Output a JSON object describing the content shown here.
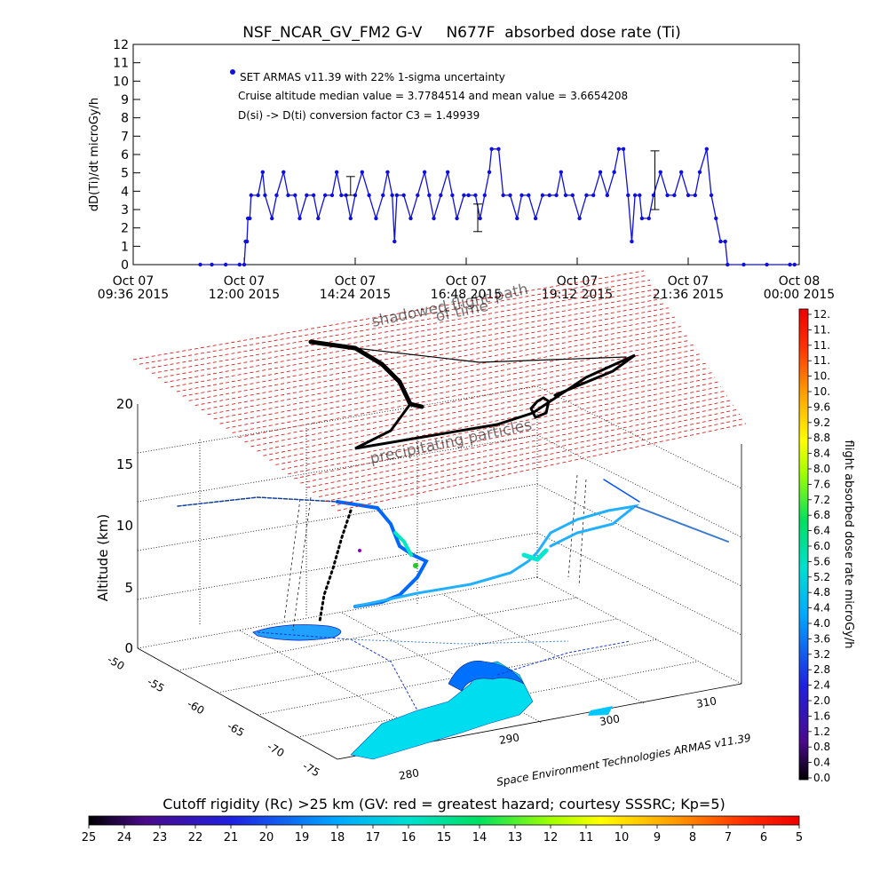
{
  "chart_data": [
    {
      "type": "line",
      "title": "NSF_NCAR_GV_FM2 G-V     N677F  absorbed dose rate (Ti)",
      "ylabel": "dD(Ti)/dt microGy/h",
      "ylim": [
        0,
        12
      ],
      "yticks": [
        "0",
        "1",
        "2",
        "3",
        "4",
        "5",
        "6",
        "7",
        "8",
        "9",
        "10",
        "11",
        "12"
      ],
      "x_ticks_line1": [
        "Oct 07",
        "Oct 07",
        "Oct 07",
        "Oct 07",
        "Oct 07",
        "Oct 07",
        "Oct 08"
      ],
      "x_ticks_line2": [
        "09:36 2015",
        "12:00 2015",
        "14:24 2015",
        "16:48 2015",
        "19:12 2015",
        "21:36 2015",
        "00:00 2015"
      ],
      "x_hours": [
        9.6,
        12.0,
        14.4,
        16.8,
        19.2,
        21.6,
        24.0
      ],
      "annotations": {
        "legend": "SET ARMAS v11.39 with 22% 1-sigma uncertainty",
        "stats": "Cruise altitude median value = 3.7784514 and mean value = 3.6654208",
        "conversion": "D(si) -> D(ti) conversion factor C3 = 1.49939"
      },
      "series": [
        {
          "color": "#1010dd",
          "points_hours_value": [
            [
              11.05,
              0
            ],
            [
              11.3,
              0
            ],
            [
              11.6,
              0
            ],
            [
              11.9,
              0
            ],
            [
              12.0,
              0
            ],
            [
              12.03,
              1.26
            ],
            [
              12.06,
              1.26
            ],
            [
              12.08,
              2.52
            ],
            [
              12.12,
              2.52
            ],
            [
              12.15,
              3.78
            ],
            [
              12.3,
              3.78
            ],
            [
              12.4,
              5.04
            ],
            [
              12.45,
              3.78
            ],
            [
              12.6,
              2.52
            ],
            [
              12.7,
              3.78
            ],
            [
              12.85,
              5.04
            ],
            [
              12.95,
              3.78
            ],
            [
              13.1,
              3.78
            ],
            [
              13.2,
              2.52
            ],
            [
              13.35,
              3.78
            ],
            [
              13.5,
              3.78
            ],
            [
              13.6,
              2.52
            ],
            [
              13.75,
              3.78
            ],
            [
              13.9,
              3.78
            ],
            [
              14.0,
              5.04
            ],
            [
              14.1,
              3.78
            ],
            [
              14.2,
              3.78
            ],
            [
              14.3,
              2.52
            ],
            [
              14.4,
              3.78
            ],
            [
              14.55,
              5.04
            ],
            [
              14.7,
              3.78
            ],
            [
              14.85,
              2.52
            ],
            [
              15.0,
              3.78
            ],
            [
              15.1,
              5.04
            ],
            [
              15.2,
              3.78
            ],
            [
              15.25,
              1.26
            ],
            [
              15.3,
              3.78
            ],
            [
              15.45,
              3.78
            ],
            [
              15.6,
              2.52
            ],
            [
              15.75,
              3.78
            ],
            [
              15.9,
              5.04
            ],
            [
              16.0,
              3.78
            ],
            [
              16.1,
              2.52
            ],
            [
              16.25,
              3.78
            ],
            [
              16.4,
              5.04
            ],
            [
              16.5,
              3.78
            ],
            [
              16.6,
              2.52
            ],
            [
              16.75,
              3.78
            ],
            [
              16.85,
              3.78
            ],
            [
              17.0,
              3.78
            ],
            [
              17.1,
              2.52
            ],
            [
              17.2,
              3.78
            ],
            [
              17.3,
              5.04
            ],
            [
              17.35,
              6.3
            ],
            [
              17.5,
              6.3
            ],
            [
              17.6,
              3.78
            ],
            [
              17.75,
              3.78
            ],
            [
              17.9,
              2.52
            ],
            [
              18.0,
              3.78
            ],
            [
              18.15,
              3.78
            ],
            [
              18.3,
              2.52
            ],
            [
              18.45,
              3.78
            ],
            [
              18.6,
              3.78
            ],
            [
              18.75,
              3.78
            ],
            [
              18.85,
              5.04
            ],
            [
              18.95,
              3.78
            ],
            [
              19.1,
              3.78
            ],
            [
              19.25,
              2.52
            ],
            [
              19.4,
              3.78
            ],
            [
              19.55,
              3.78
            ],
            [
              19.7,
              5.04
            ],
            [
              19.85,
              3.78
            ],
            [
              20.0,
              5.04
            ],
            [
              20.1,
              6.3
            ],
            [
              20.2,
              6.3
            ],
            [
              20.3,
              3.78
            ],
            [
              20.38,
              1.26
            ],
            [
              20.45,
              3.78
            ],
            [
              20.55,
              3.78
            ],
            [
              20.6,
              2.52
            ],
            [
              20.75,
              2.52
            ],
            [
              20.85,
              3.78
            ],
            [
              21.0,
              5.04
            ],
            [
              21.15,
              3.78
            ],
            [
              21.3,
              3.78
            ],
            [
              21.45,
              5.04
            ],
            [
              21.6,
              3.78
            ],
            [
              21.75,
              3.78
            ],
            [
              21.85,
              5.04
            ],
            [
              22.0,
              6.3
            ],
            [
              22.1,
              3.78
            ],
            [
              22.2,
              2.52
            ],
            [
              22.3,
              1.26
            ],
            [
              22.4,
              1.26
            ],
            [
              22.45,
              0
            ],
            [
              22.8,
              0
            ],
            [
              23.3,
              0
            ],
            [
              23.8,
              0
            ],
            [
              23.9,
              0
            ]
          ],
          "error_bars": [
            [
              14.3,
              3.78,
              4.8
            ],
            [
              17.05,
              1.8,
              3.3
            ],
            [
              20.88,
              3.0,
              6.2
            ]
          ]
        }
      ]
    },
    {
      "type": "scatter",
      "subtype": "3d-trajectory",
      "zlabel": "Altitude (km)",
      "zticks": [
        "0",
        "5",
        "10",
        "15",
        "20"
      ],
      "lat_ticks": [
        "-50",
        "-55",
        "-60",
        "-65",
        "-70",
        "-75"
      ],
      "lon_ticks": [
        "280",
        "290",
        "300",
        "310"
      ],
      "plane_labels": [
        "shadowed flight path",
        "of time",
        "precipitating particles"
      ],
      "credit": "Space Environment Technologies ARMAS v11.39",
      "colorbar_right": {
        "label": "flight absorbed dose rate microGy/h",
        "ticks": [
          "0.0",
          "0.4",
          "0.8",
          "1.2",
          "1.6",
          "2.0",
          "2.4",
          "2.8",
          "3.2",
          "3.6",
          "4.0",
          "4.4",
          "4.8",
          "5.2",
          "5.6",
          "6.0",
          "6.4",
          "6.8",
          "7.2",
          "7.6",
          "8.0",
          "8.4",
          "8.8",
          "9.2",
          "9.6",
          "10.",
          "10.",
          "11.",
          "11.",
          "11.",
          "12."
        ]
      },
      "colorbar_bottom": {
        "title": "Cutoff rigidity (Rc) >25 km (GV: red = greatest hazard; courtesy SSSRC; Kp=5)",
        "ticks": [
          "25",
          "24",
          "23",
          "22",
          "21",
          "20",
          "19",
          "18",
          "17",
          "16",
          "15",
          "14",
          "13",
          "12",
          "11",
          "10",
          "9",
          "8",
          "7",
          "6",
          "5"
        ]
      }
    }
  ]
}
